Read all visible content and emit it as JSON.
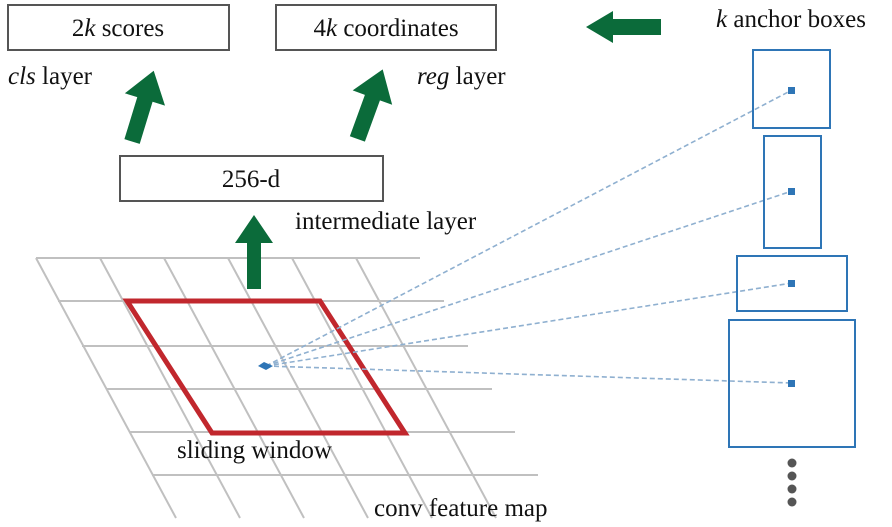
{
  "boxes": {
    "scores": {
      "prefix": "2",
      "k": "k",
      "suffix": " scores"
    },
    "coordinates": {
      "prefix": "4",
      "k": "k",
      "suffix": " coordinates"
    },
    "intermediate": {
      "label": "256-d"
    }
  },
  "labels": {
    "cls": {
      "italic": "cls",
      "rest": " layer"
    },
    "reg": {
      "italic": "reg",
      "rest": " layer"
    },
    "intermediate_layer": "intermediate layer",
    "anchor_boxes": {
      "italic": "k",
      "rest": " anchor boxes"
    },
    "sliding_window": "sliding window",
    "feature_map": "conv feature map"
  },
  "colors": {
    "arrow": "#0b6b3a",
    "window": "#c1272d",
    "anchor": "#2e75b6",
    "grid": "#c0c0c0"
  }
}
